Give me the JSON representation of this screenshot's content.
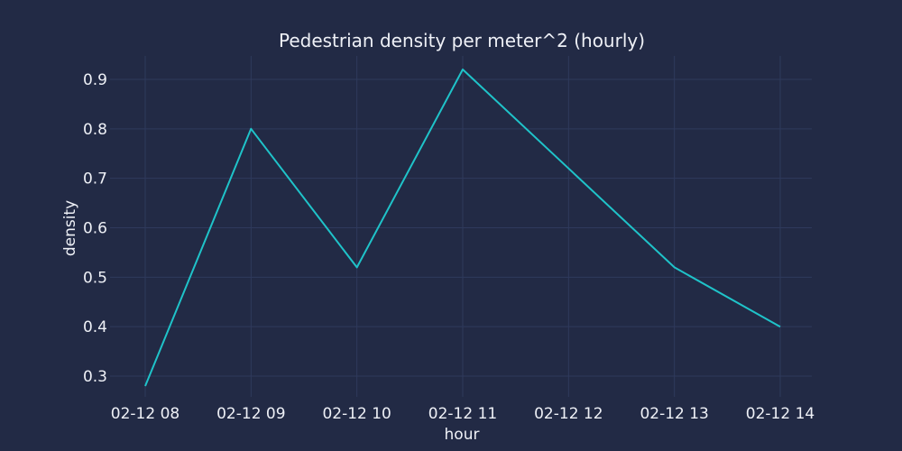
{
  "chart_data": {
    "type": "line",
    "title": "Pedestrian density per meter^2 (hourly)",
    "xlabel": "hour",
    "ylabel": "density",
    "categories": [
      "02-12 08",
      "02-12 09",
      "02-12 10",
      "02-12 11",
      "02-12 12",
      "02-12 13",
      "02-12 14"
    ],
    "x_ticks": [
      "02-12 08",
      "02-12 09",
      "02-12 10",
      "02-12 11",
      "02-12 12",
      "02-12 13",
      "02-12 14"
    ],
    "y_ticks": [
      0.3,
      0.4,
      0.5,
      0.6,
      0.7,
      0.8,
      0.9
    ],
    "ylim": [
      0.255,
      0.95
    ],
    "grid": true,
    "series": [
      {
        "values": [
          0.28,
          0.8,
          0.52,
          0.92,
          0.72,
          0.52,
          0.4
        ],
        "color": "#1fc3c9"
      }
    ]
  }
}
